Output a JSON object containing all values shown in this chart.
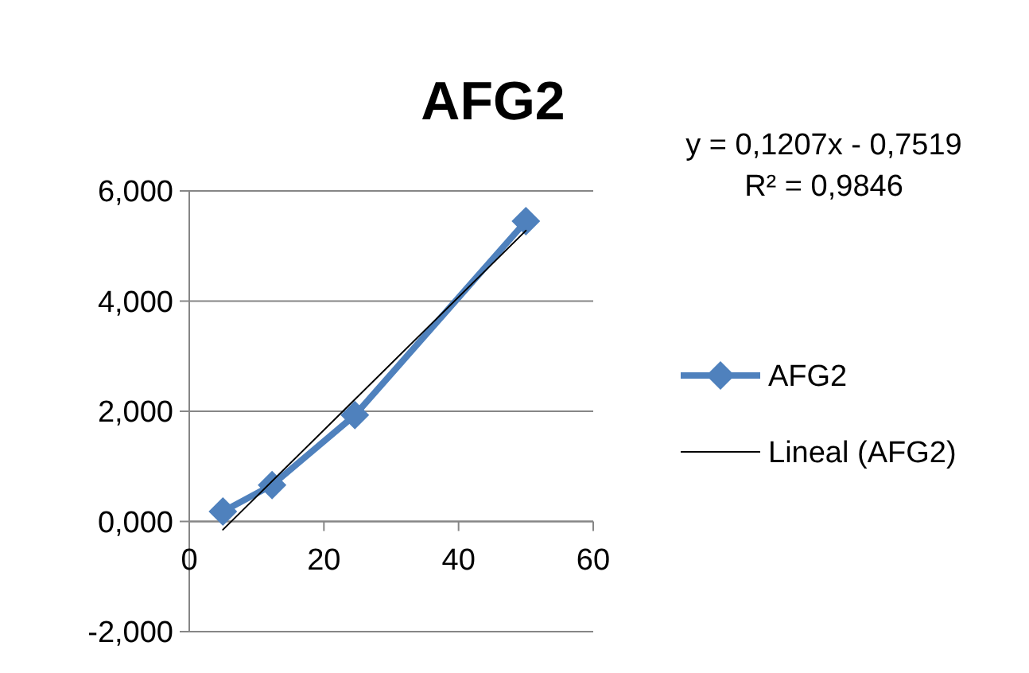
{
  "chart_data": {
    "type": "line",
    "title": "AFG2",
    "annotations": [
      "y = 0,1207x - 0,7519",
      "R² = 0,9846"
    ],
    "xlim": [
      0,
      60
    ],
    "xticks": [
      0,
      20,
      40,
      60
    ],
    "ylim": [
      -2,
      6
    ],
    "yticks": [
      {
        "value": -2,
        "label": "-2,000"
      },
      {
        "value": 0,
        "label": "0,000"
      },
      {
        "value": 2,
        "label": "2,000"
      },
      {
        "value": 4,
        "label": "4,000"
      },
      {
        "value": 6,
        "label": "6,000"
      }
    ],
    "grid": "y",
    "legend": "right",
    "series": [
      {
        "name": "AFG2",
        "color": "#4f81bd",
        "marker": "diamond",
        "x": [
          5,
          12.3,
          24.6,
          50
        ],
        "values": [
          0.18,
          0.66,
          1.93,
          5.45
        ]
      },
      {
        "name": "Lineal (AFG2)",
        "color": "#000000",
        "marker": "none",
        "x": [
          5,
          50
        ],
        "values": [
          -0.15,
          5.28
        ]
      }
    ]
  }
}
